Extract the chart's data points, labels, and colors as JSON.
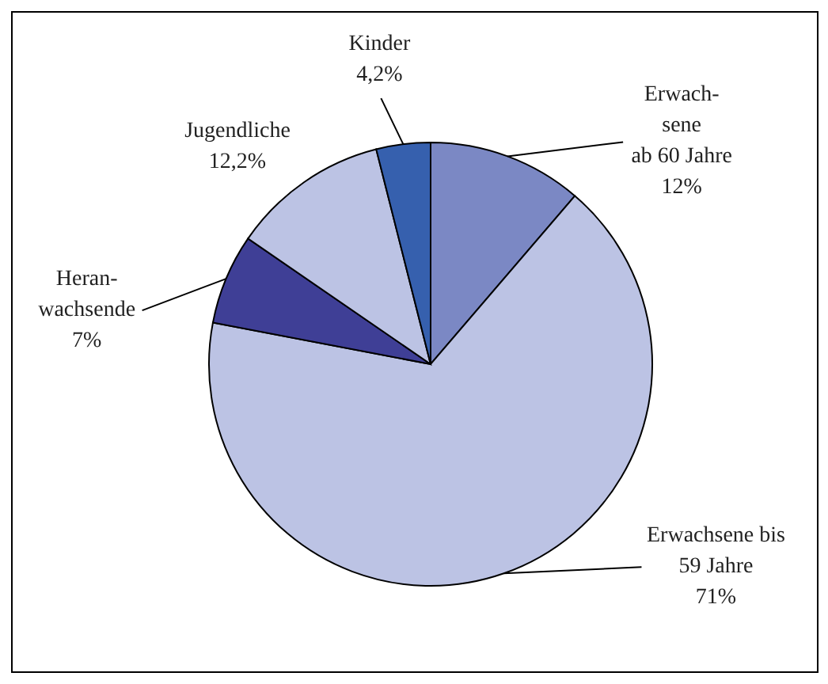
{
  "chart_data": {
    "type": "pie",
    "categories": [
      "Erwach-\nsene\nab 60 Jahre",
      "Erwachsene bis\n59 Jahre",
      "Heran-\nwachsende",
      "Jugendliche",
      "Kinder"
    ],
    "values": [
      12,
      71,
      7,
      12.2,
      4.2
    ],
    "colors": [
      "#7b88c4",
      "#bcc3e4",
      "#3f3f96",
      "#bcc3e4",
      "#3660ae"
    ],
    "value_labels": [
      "12%",
      "71%",
      "7%",
      "12,2%",
      "4,2%"
    ]
  }
}
